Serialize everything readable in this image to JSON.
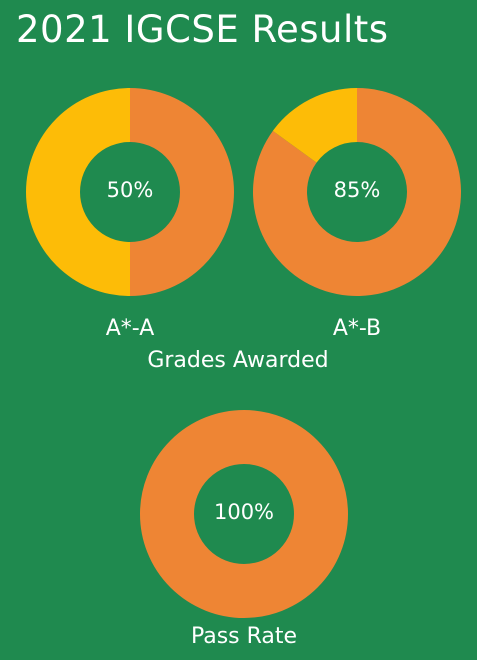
{
  "title": "2021 IGCSE Results",
  "colors": {
    "background": "#1f8a4f",
    "primary": "#ee8534",
    "secondary": "#fdbc07",
    "text": "#ffffff"
  },
  "chart_data": [
    {
      "type": "pie",
      "variant": "donut",
      "group": "Grades Awarded",
      "label": "A*-A",
      "center_text": "50%",
      "value": 50,
      "slices": [
        {
          "value": 50,
          "color": "#ee8534"
        },
        {
          "value": 50,
          "color": "#fdbc07"
        }
      ]
    },
    {
      "type": "pie",
      "variant": "donut",
      "group": "Grades Awarded",
      "label": "A*-B",
      "center_text": "85%",
      "value": 85,
      "slices": [
        {
          "value": 85,
          "color": "#ee8534"
        },
        {
          "value": 15,
          "color": "#fdbc07"
        }
      ]
    },
    {
      "type": "pie",
      "variant": "donut",
      "group": "Pass Rate",
      "label": "Pass Rate",
      "center_text": "100%",
      "value": 100,
      "slices": [
        {
          "value": 100,
          "color": "#ee8534"
        }
      ]
    }
  ],
  "groups": {
    "grades_awarded": "Grades Awarded"
  }
}
